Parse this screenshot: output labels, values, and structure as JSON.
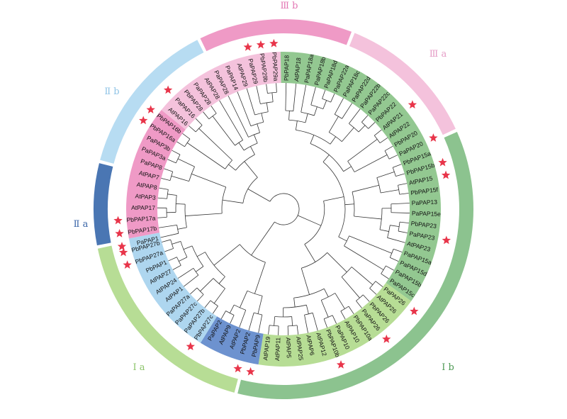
{
  "figure": {
    "clades": [
      {
        "id": "IIIb",
        "label": "Ⅲ b",
        "ring_color": "#ef9ac6",
        "band_color": "#ef9ac6",
        "label_color": "#e377b4"
      },
      {
        "id": "IIIa",
        "label": "Ⅲ a",
        "ring_color": "#f4c2dc",
        "band_color": "#f4c2dc",
        "label_color": "#e59cc6"
      },
      {
        "id": "Ib",
        "label": "Ⅰ b",
        "ring_color": "#8cc38f",
        "band_color": "#93c891",
        "label_color": "#4f9a55"
      },
      {
        "id": "Ia",
        "label": "Ⅰ a",
        "ring_color": "#b7dd95",
        "band_color": "#b7dd95",
        "label_color": "#8cc46a"
      },
      {
        "id": "IIa",
        "label": "Ⅱ a",
        "ring_color": "#4a76b3",
        "band_color": "#6d92cf",
        "label_color": "#3b66a8"
      },
      {
        "id": "IIb",
        "label": "Ⅱ b",
        "ring_color": "#b7dcf2",
        "band_color": "#aed6ef",
        "label_color": "#90c4e6"
      }
    ],
    "leaves": [
      {
        "name": "PaPAP1",
        "clade": "IIb",
        "star": true
      },
      {
        "name": "PbPAP17b",
        "clade": "IIIb",
        "star": true
      },
      {
        "name": "PbPAP17a",
        "clade": "IIIb",
        "star": true
      },
      {
        "name": "AtPAP17",
        "clade": "IIIb",
        "star": false
      },
      {
        "name": "AtPAP3",
        "clade": "IIIb",
        "star": false
      },
      {
        "name": "AtPAP8",
        "clade": "IIIb",
        "star": false
      },
      {
        "name": "AtPAP7",
        "clade": "IIIb",
        "star": false
      },
      {
        "name": "PaPAP8",
        "clade": "IIIb",
        "star": false
      },
      {
        "name": "PaPAP3a",
        "clade": "IIIb",
        "star": false
      },
      {
        "name": "PaPAP3b",
        "clade": "IIIb",
        "star": false
      },
      {
        "name": "PbPAP16a",
        "clade": "IIIb",
        "star": true
      },
      {
        "name": "PbPAP16b",
        "clade": "IIIb",
        "star": true
      },
      {
        "name": "AtPAP16",
        "clade": "IIIa",
        "star": false
      },
      {
        "name": "PaPAP16",
        "clade": "IIIa",
        "star": true
      },
      {
        "name": "PbPAP28",
        "clade": "IIIa",
        "star": false
      },
      {
        "name": "PaPAP28",
        "clade": "IIIa",
        "star": false
      },
      {
        "name": "AtPAP28",
        "clade": "IIIa",
        "star": false
      },
      {
        "name": "PaPAP28",
        "clade": "IIIa",
        "star": false
      },
      {
        "name": "PaPAP14",
        "clade": "IIIa",
        "star": false
      },
      {
        "name": "AtPAP29",
        "clade": "IIIa",
        "star": false
      },
      {
        "name": "PaPAP29",
        "clade": "IIIa",
        "star": true
      },
      {
        "name": "PbPAP29b",
        "clade": "IIIa",
        "star": true
      },
      {
        "name": "PbPAP29a",
        "clade": "IIIa",
        "star": true
      },
      {
        "name": "PbPAP18",
        "clade": "Ib",
        "star": false
      },
      {
        "name": "AtPAP18",
        "clade": "Ib",
        "star": false
      },
      {
        "name": "PaPAP18a",
        "clade": "Ib",
        "star": false
      },
      {
        "name": "PaPAP18b",
        "clade": "Ib",
        "star": false
      },
      {
        "name": "PaPAP18d",
        "clade": "Ib",
        "star": false
      },
      {
        "name": "PaPAP22a",
        "clade": "Ib",
        "star": false
      },
      {
        "name": "PaPAP18c",
        "clade": "Ib",
        "star": false
      },
      {
        "name": "PaPAP22d",
        "clade": "Ib",
        "star": false
      },
      {
        "name": "PaPAP22b",
        "clade": "Ib",
        "star": false
      },
      {
        "name": "PaPAP22c",
        "clade": "Ib",
        "star": false
      },
      {
        "name": "PbPAP22",
        "clade": "Ib",
        "star": false
      },
      {
        "name": "AtPAP21",
        "clade": "Ib",
        "star": true
      },
      {
        "name": "AtPAP22",
        "clade": "Ib",
        "star": false
      },
      {
        "name": "PbPAP20",
        "clade": "Ib",
        "star": false
      },
      {
        "name": "PaPAP20",
        "clade": "Ib",
        "star": true
      },
      {
        "name": "PbPAP15a",
        "clade": "Ib",
        "star": false
      },
      {
        "name": "PbPAP15b",
        "clade": "Ib",
        "star": true
      },
      {
        "name": "AtPAP15",
        "clade": "Ib",
        "star": true
      },
      {
        "name": "PbPAP15f",
        "clade": "Ib",
        "star": false
      },
      {
        "name": "PaPAP13",
        "clade": "Ib",
        "star": false
      },
      {
        "name": "PaPAP15e",
        "clade": "Ib",
        "star": false
      },
      {
        "name": "PbPAP23",
        "clade": "Ib",
        "star": false
      },
      {
        "name": "PaPAP23",
        "clade": "Ib",
        "star": true
      },
      {
        "name": "AtPAP23",
        "clade": "Ib",
        "star": false
      },
      {
        "name": "PaPAP15a",
        "clade": "Ib",
        "star": false
      },
      {
        "name": "PaPAP15d",
        "clade": "Ib",
        "star": false
      },
      {
        "name": "PaPAP15b",
        "clade": "Ib",
        "star": false
      },
      {
        "name": "PaPAP15c",
        "clade": "Ib",
        "star": false
      },
      {
        "name": "PaPAP26",
        "clade": "Ia",
        "star": true
      },
      {
        "name": "AtPAP26",
        "clade": "Ia",
        "star": false
      },
      {
        "name": "PbPAP26",
        "clade": "Ia",
        "star": false
      },
      {
        "name": "PaPAP26",
        "clade": "Ia",
        "star": true
      },
      {
        "name": "PbPAP10a",
        "clade": "Ia",
        "star": false
      },
      {
        "name": "AtPAP10",
        "clade": "Ia",
        "star": false
      },
      {
        "name": "PaPAP10",
        "clade": "Ia",
        "star": false
      },
      {
        "name": "PbPAP10b",
        "clade": "Ia",
        "star": true
      },
      {
        "name": "AtPAP12",
        "clade": "Ia",
        "star": false
      },
      {
        "name": "AtPAP6",
        "clade": "Ia",
        "star": false
      },
      {
        "name": "AtPAP25",
        "clade": "Ia",
        "star": false
      },
      {
        "name": "AtPAP5",
        "clade": "Ia",
        "star": false
      },
      {
        "name": "AtPAP11",
        "clade": "Ia",
        "star": false
      },
      {
        "name": "AtPAP19",
        "clade": "Ia",
        "star": false
      },
      {
        "name": "PbPAP9",
        "clade": "IIa",
        "star": true
      },
      {
        "name": "PbPAP2",
        "clade": "IIa",
        "star": true
      },
      {
        "name": "AtPAP2",
        "clade": "IIa",
        "star": false
      },
      {
        "name": "AtPAP9",
        "clade": "IIa",
        "star": false
      },
      {
        "name": "PaPAP2",
        "clade": "IIa",
        "star": false
      },
      {
        "name": "PbPAP27c",
        "clade": "IIb",
        "star": true
      },
      {
        "name": "PaPAP27b",
        "clade": "IIb",
        "star": false
      },
      {
        "name": "PaPAP27c",
        "clade": "IIb",
        "star": false
      },
      {
        "name": "PaPAP27a",
        "clade": "IIb",
        "star": false
      },
      {
        "name": "AtPAP1",
        "clade": "IIb",
        "star": false
      },
      {
        "name": "AtPAP24",
        "clade": "IIb",
        "star": false
      },
      {
        "name": "AtPAP27",
        "clade": "IIb",
        "star": false
      },
      {
        "name": "PbPAP1",
        "clade": "IIb",
        "star": false
      },
      {
        "name": "PbPAP27a",
        "clade": "IIb",
        "star": true
      },
      {
        "name": "PbPAP27b",
        "clade": "IIb",
        "star": true
      }
    ],
    "star_color": "#e8354a",
    "branch_color": "#333333"
  }
}
